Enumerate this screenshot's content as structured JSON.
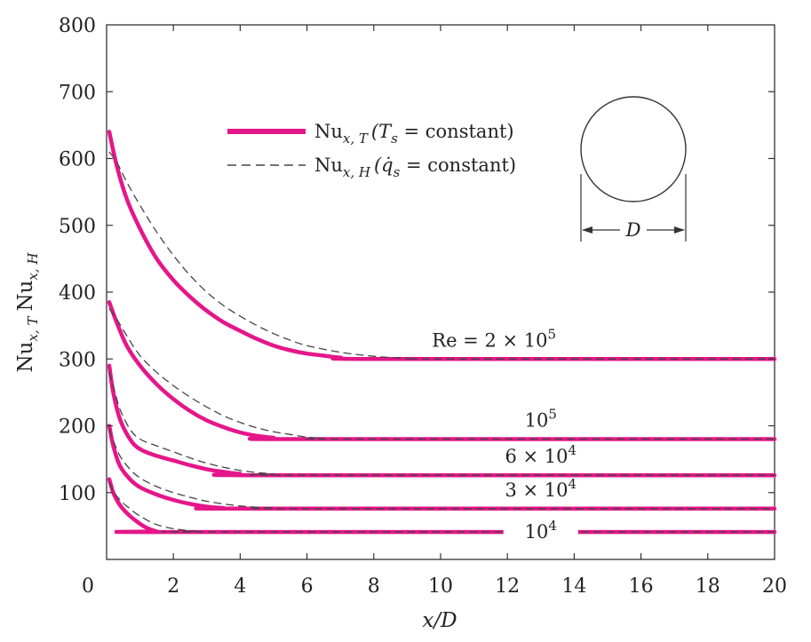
{
  "chart_data": {
    "type": "line",
    "xlabel": "x/D",
    "ylabel": "Nu",
    "ylabel_sub": "x, T",
    "ylabel_sub2": "x, H",
    "xlim": [
      0,
      20
    ],
    "ylim": [
      0,
      800
    ],
    "xticks": [
      0,
      2,
      4,
      6,
      8,
      10,
      12,
      14,
      16,
      18,
      20
    ],
    "yticks": [
      100,
      200,
      300,
      400,
      500,
      600,
      700,
      800
    ],
    "grid": false,
    "colors": {
      "solid": "#e5168a",
      "dashed": "#444444",
      "text": "#222222"
    },
    "legend": {
      "position": "top-center",
      "items": [
        {
          "style": "solid",
          "text_main": "Nu",
          "text_sub": "x, T",
          "text_rest": "(T",
          "text_var_sub": "s",
          "text_end": " = constant)"
        },
        {
          "style": "dashed",
          "text_main": "Nu",
          "text_sub": "x, H",
          "text_rest": "(q̇",
          "text_var_sub": "s",
          "text_end": " = constant)"
        }
      ]
    },
    "inset": {
      "shape": "circle",
      "dimension_label": "D"
    },
    "series": [
      {
        "label_main": "Re = 2 × 10",
        "label_sup": "5",
        "solid": [
          [
            0.08,
            640
          ],
          [
            0.3,
            590
          ],
          [
            0.6,
            540
          ],
          [
            1,
            495
          ],
          [
            1.5,
            450
          ],
          [
            2,
            418
          ],
          [
            2.5,
            393
          ],
          [
            3,
            372
          ],
          [
            3.5,
            355
          ],
          [
            4,
            342
          ],
          [
            4.5,
            330
          ],
          [
            5,
            320
          ],
          [
            5.5,
            313
          ],
          [
            6,
            308
          ],
          [
            6.5,
            305
          ],
          [
            7,
            302
          ],
          [
            8,
            300
          ],
          [
            20,
            300
          ]
        ],
        "dashed": [
          [
            0.08,
            610
          ],
          [
            0.3,
            595
          ],
          [
            0.6,
            565
          ],
          [
            1,
            530
          ],
          [
            1.5,
            490
          ],
          [
            2,
            455
          ],
          [
            2.5,
            425
          ],
          [
            3,
            400
          ],
          [
            3.5,
            380
          ],
          [
            4,
            364
          ],
          [
            4.5,
            350
          ],
          [
            5,
            338
          ],
          [
            5.5,
            328
          ],
          [
            6,
            320
          ],
          [
            7,
            310
          ],
          [
            8,
            304
          ],
          [
            9,
            301
          ],
          [
            10,
            300
          ],
          [
            20,
            300
          ]
        ]
      },
      {
        "label_main": "10",
        "label_sup": "5",
        "solid": [
          [
            0.08,
            385
          ],
          [
            0.3,
            355
          ],
          [
            0.6,
            320
          ],
          [
            1,
            290
          ],
          [
            1.5,
            262
          ],
          [
            2,
            240
          ],
          [
            2.5,
            222
          ],
          [
            3,
            208
          ],
          [
            3.5,
            198
          ],
          [
            4,
            190
          ],
          [
            4.5,
            185
          ],
          [
            5,
            182
          ],
          [
            5.5,
            180
          ],
          [
            20,
            180
          ]
        ],
        "dashed": [
          [
            0.08,
            375
          ],
          [
            0.3,
            360
          ],
          [
            0.6,
            335
          ],
          [
            1,
            305
          ],
          [
            1.5,
            280
          ],
          [
            2,
            260
          ],
          [
            2.5,
            243
          ],
          [
            3,
            228
          ],
          [
            3.5,
            215
          ],
          [
            4,
            205
          ],
          [
            4.5,
            197
          ],
          [
            5,
            191
          ],
          [
            5.5,
            187
          ],
          [
            6,
            183
          ],
          [
            6.5,
            181
          ],
          [
            7,
            180
          ],
          [
            20,
            180
          ]
        ]
      },
      {
        "label_main": "6 × 10",
        "label_sup": "4",
        "solid": [
          [
            0.08,
            290
          ],
          [
            0.2,
            250
          ],
          [
            0.4,
            210
          ],
          [
            0.7,
            180
          ],
          [
            1,
            165
          ],
          [
            1.5,
            155
          ],
          [
            2,
            148
          ],
          [
            2.5,
            141
          ],
          [
            3,
            135
          ],
          [
            3.5,
            131
          ],
          [
            4,
            128
          ],
          [
            4.5,
            126
          ],
          [
            20,
            126
          ]
        ],
        "dashed": [
          [
            0.08,
            280
          ],
          [
            0.2,
            260
          ],
          [
            0.4,
            225
          ],
          [
            0.7,
            195
          ],
          [
            1,
            180
          ],
          [
            1.5,
            170
          ],
          [
            2,
            161
          ],
          [
            2.5,
            152
          ],
          [
            3,
            144
          ],
          [
            3.5,
            138
          ],
          [
            4,
            133
          ],
          [
            4.5,
            130
          ],
          [
            5,
            128
          ],
          [
            5.5,
            126
          ],
          [
            20,
            126
          ]
        ]
      },
      {
        "label_main": "3 × 10",
        "label_sup": "4",
        "solid": [
          [
            0.08,
            200
          ],
          [
            0.2,
            170
          ],
          [
            0.4,
            140
          ],
          [
            0.7,
            120
          ],
          [
            1,
            108
          ],
          [
            1.5,
            97
          ],
          [
            2,
            89
          ],
          [
            2.5,
            83
          ],
          [
            3,
            79
          ],
          [
            3.5,
            77
          ],
          [
            4,
            76
          ],
          [
            20,
            76
          ]
        ],
        "dashed": [
          [
            0.08,
            195
          ],
          [
            0.2,
            178
          ],
          [
            0.4,
            155
          ],
          [
            0.7,
            135
          ],
          [
            1,
            122
          ],
          [
            1.5,
            109
          ],
          [
            2,
            100
          ],
          [
            2.5,
            93
          ],
          [
            3,
            87
          ],
          [
            3.5,
            83
          ],
          [
            4,
            80
          ],
          [
            4.5,
            78
          ],
          [
            5,
            77
          ],
          [
            5.5,
            76
          ],
          [
            20,
            76
          ]
        ]
      },
      {
        "label_main": "10",
        "label_sup": "4",
        "solid": [
          [
            0.08,
            120
          ],
          [
            0.2,
            100
          ],
          [
            0.35,
            85
          ],
          [
            0.5,
            75
          ],
          [
            0.7,
            65
          ],
          [
            0.9,
            57
          ],
          [
            1.1,
            50
          ],
          [
            1.3,
            45
          ],
          [
            1.5,
            42
          ],
          [
            1.7,
            41
          ],
          [
            20,
            41
          ]
        ],
        "dashed": [
          [
            0.08,
            115
          ],
          [
            0.2,
            102
          ],
          [
            0.35,
            92
          ],
          [
            0.5,
            84
          ],
          [
            0.7,
            76
          ],
          [
            0.9,
            68
          ],
          [
            1.1,
            62
          ],
          [
            1.4,
            54
          ],
          [
            1.7,
            49
          ],
          [
            2,
            46
          ],
          [
            2.3,
            44
          ],
          [
            2.7,
            42
          ],
          [
            3,
            41
          ],
          [
            20,
            41
          ]
        ]
      }
    ]
  }
}
